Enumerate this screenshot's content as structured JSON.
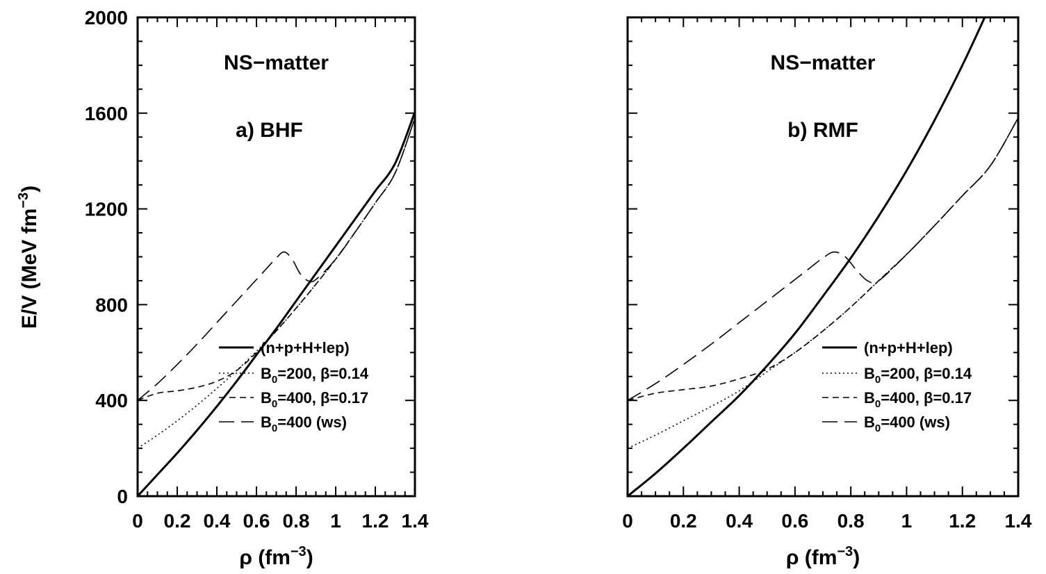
{
  "chart_data": [
    {
      "type": "line",
      "panel_label": "a)  BHF",
      "title": "NS−matter",
      "xlabel": "ρ (fm",
      "xlabel_sup": "−3",
      "xlabel_end": ")",
      "ylabel": "E/V  (MeV fm",
      "ylabel_sup": "−3",
      "ylabel_end": ")",
      "xlim": [
        0,
        1.4
      ],
      "ylim": [
        0,
        2000
      ],
      "xticks": [
        "0",
        "0.2",
        "0.4",
        "0.6",
        "0.8",
        "1",
        "1.2",
        "1.4"
      ],
      "yticks": [
        "0",
        "400",
        "800",
        "1200",
        "1600",
        "2000"
      ],
      "legend_position": "lower-right",
      "series": [
        {
          "label_parts": [
            "(n+p+H+lep)"
          ],
          "style": "solid",
          "x": [
            0,
            0.1,
            0.2,
            0.3,
            0.4,
            0.5,
            0.6,
            0.7,
            0.8,
            0.9,
            1.0,
            1.1,
            1.2,
            1.3,
            1.4
          ],
          "y": [
            0,
            90,
            180,
            275,
            375,
            480,
            590,
            700,
            815,
            930,
            1045,
            1160,
            1275,
            1390,
            1605
          ]
        },
        {
          "label_parts": [
            "B",
            "0",
            "=200, β=0.14"
          ],
          "style": "dotted",
          "x": [
            0,
            0.1,
            0.2,
            0.3,
            0.4,
            0.5,
            0.6,
            0.7,
            0.8,
            0.9,
            1.0,
            1.1,
            1.2,
            1.3,
            1.4
          ],
          "y": [
            200,
            255,
            315,
            380,
            450,
            525,
            605,
            690,
            785,
            885,
            990,
            1105,
            1225,
            1350,
            1580
          ]
        },
        {
          "label_parts": [
            "B",
            "0",
            "=400, β=0.17"
          ],
          "style": "dashed",
          "x": [
            0,
            0.1,
            0.2,
            0.3,
            0.4,
            0.5,
            0.6,
            0.7,
            0.8,
            0.9,
            1.0,
            1.1,
            1.2,
            1.3,
            1.4
          ],
          "y": [
            400,
            430,
            440,
            455,
            480,
            525,
            600,
            690,
            785,
            885,
            990,
            1105,
            1225,
            1350,
            1580
          ]
        },
        {
          "label_parts": [
            "B",
            "0",
            "=400 (ws)"
          ],
          "style": "longdash",
          "x": [
            0,
            0.1,
            0.2,
            0.3,
            0.4,
            0.5,
            0.6,
            0.65,
            0.7,
            0.74,
            0.78,
            0.82,
            0.86,
            0.9,
            1.0,
            1.1,
            1.2,
            1.3,
            1.4
          ],
          "y": [
            400,
            470,
            550,
            635,
            725,
            815,
            905,
            950,
            995,
            1020,
            990,
            930,
            900,
            905,
            990,
            1105,
            1225,
            1350,
            1580
          ]
        }
      ]
    },
    {
      "type": "line",
      "panel_label": "b)  RMF",
      "title": "NS−matter",
      "xlabel": "ρ (fm",
      "xlabel_sup": "−3",
      "xlabel_end": ")",
      "xlim": [
        0,
        1.4
      ],
      "ylim": [
        0,
        2000
      ],
      "xticks": [
        "0",
        "0.2",
        "0.4",
        "0.6",
        "0.8",
        "1",
        "1.2",
        "1.4"
      ],
      "legend_position": "lower-right",
      "series": [
        {
          "label_parts": [
            "(n+p+H+lep)"
          ],
          "style": "solid",
          "x": [
            0,
            0.1,
            0.2,
            0.3,
            0.4,
            0.5,
            0.6,
            0.7,
            0.8,
            0.9,
            1.0,
            1.1,
            1.2,
            1.28
          ],
          "y": [
            0,
            95,
            200,
            310,
            420,
            545,
            680,
            835,
            995,
            1170,
            1360,
            1570,
            1800,
            2000
          ]
        },
        {
          "label_parts": [
            "B",
            "0",
            "=200, β=0.14"
          ],
          "style": "dotted",
          "x": [
            0,
            0.1,
            0.2,
            0.3,
            0.4,
            0.5,
            0.6,
            0.7,
            0.8,
            0.9,
            1.0,
            1.1,
            1.2,
            1.3,
            1.4
          ],
          "y": [
            200,
            255,
            315,
            375,
            440,
            520,
            600,
            690,
            790,
            900,
            1010,
            1130,
            1255,
            1380,
            1580
          ]
        },
        {
          "label_parts": [
            "B",
            "0",
            "=400, β=0.17"
          ],
          "style": "dashed",
          "x": [
            0,
            0.1,
            0.2,
            0.3,
            0.4,
            0.5,
            0.6,
            0.7,
            0.8,
            0.9,
            1.0,
            1.1,
            1.2,
            1.3,
            1.4
          ],
          "y": [
            400,
            430,
            445,
            460,
            490,
            530,
            600,
            690,
            790,
            900,
            1010,
            1130,
            1255,
            1380,
            1580
          ]
        },
        {
          "label_parts": [
            "B",
            "0",
            "=400 (ws)"
          ],
          "style": "longdash",
          "x": [
            0,
            0.1,
            0.2,
            0.3,
            0.4,
            0.5,
            0.6,
            0.65,
            0.7,
            0.74,
            0.78,
            0.82,
            0.86,
            0.9,
            1.0,
            1.1,
            1.2,
            1.3,
            1.4
          ],
          "y": [
            400,
            470,
            550,
            635,
            725,
            815,
            905,
            950,
            995,
            1020,
            1000,
            945,
            900,
            900,
            1010,
            1130,
            1255,
            1380,
            1580
          ]
        }
      ]
    }
  ]
}
